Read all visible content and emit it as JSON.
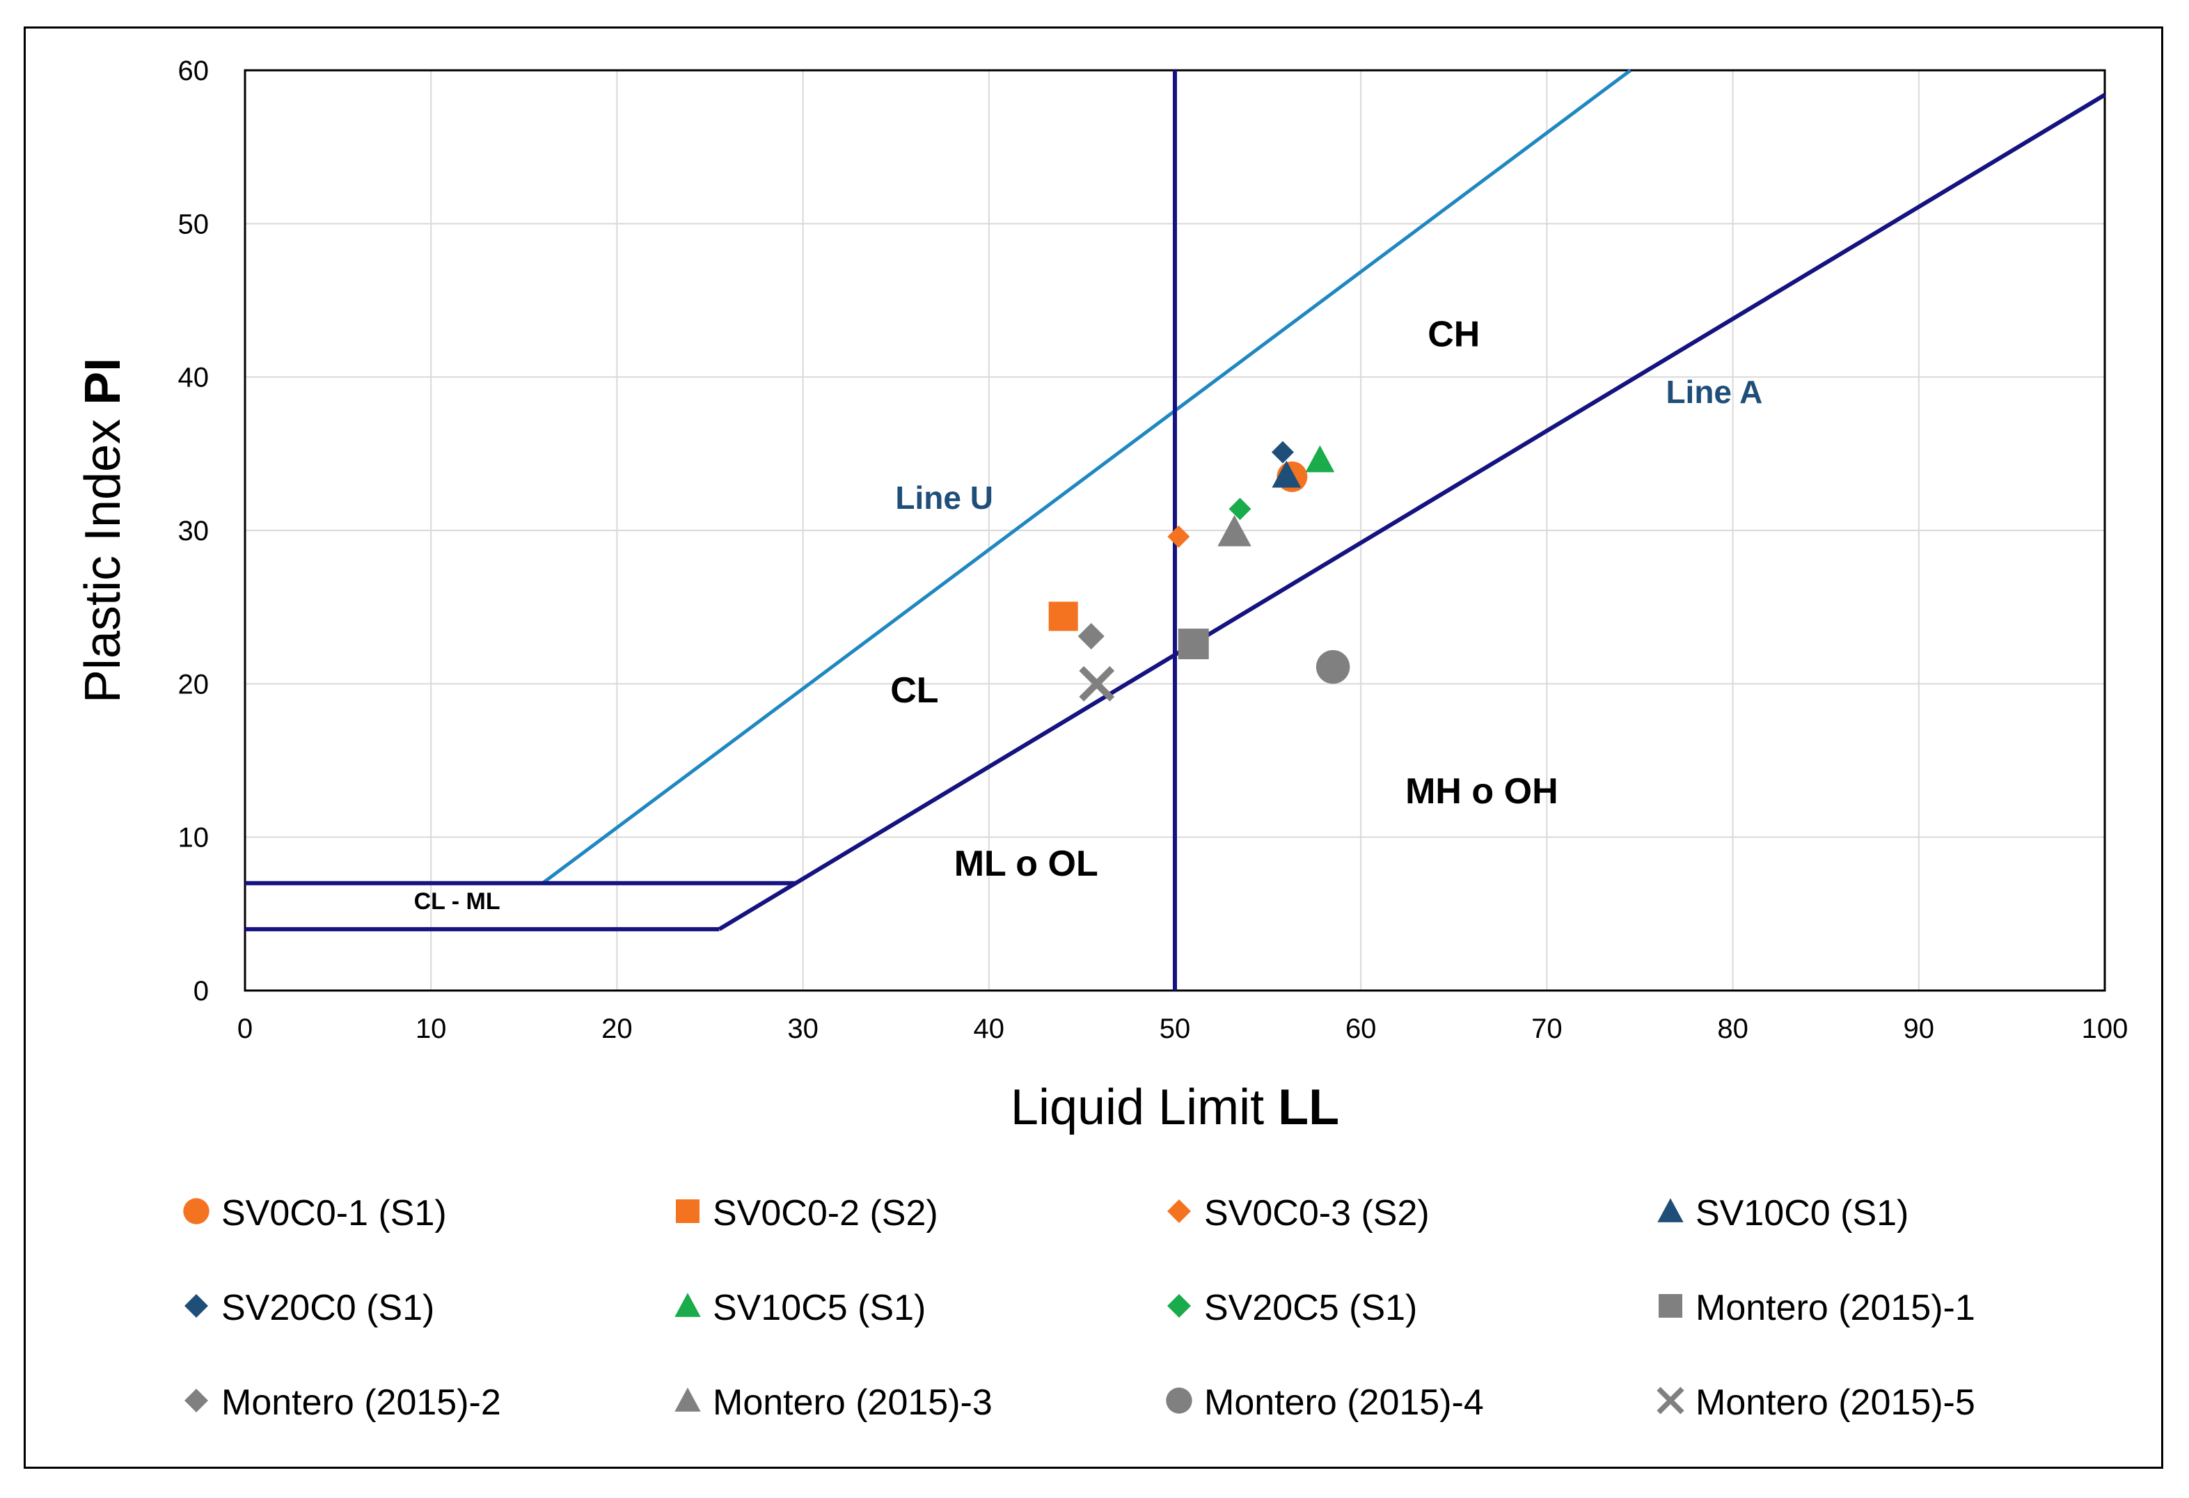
{
  "chart_data": {
    "type": "scatter",
    "xlabel": "Liquid Limit",
    "xlabel_bold": "LL",
    "ylabel": "Plastic Index",
    "ylabel_bold": "PI",
    "xlim": [
      0,
      100
    ],
    "ylim": [
      0,
      60
    ],
    "xticks": [
      "0",
      "10",
      "20",
      "30",
      "40",
      "50",
      "60",
      "70",
      "80",
      "90",
      "100"
    ],
    "yticks": [
      "0",
      "10",
      "20",
      "30",
      "40",
      "50",
      "60"
    ],
    "grid": true,
    "legend": "bottom",
    "regions": [
      {
        "text": "CH",
        "x": 65,
        "y": 42
      },
      {
        "text": "CL",
        "x": 36,
        "y": 18.8
      },
      {
        "text": "MH o OH",
        "x": 66.5,
        "y": 12.2
      },
      {
        "text": "ML o OL",
        "x": 42,
        "y": 7.5
      },
      {
        "text": "CL - ML",
        "x": 11.4,
        "y": 5.3
      }
    ],
    "line_labels": [
      {
        "text": "Line U",
        "x": 37.6,
        "y": 31.4
      },
      {
        "text": "Line A",
        "x": 79,
        "y": 38.3
      }
    ],
    "lines": [
      {
        "name": "Line U",
        "color": "#1F87C1",
        "points": [
          [
            16,
            7
          ],
          [
            74.5,
            60
          ]
        ]
      },
      {
        "name": "Line A",
        "color": "#14137F",
        "points": [
          [
            25.5,
            4
          ],
          [
            100,
            58.4
          ]
        ]
      },
      {
        "name": "LL = 50",
        "color": "#14137F",
        "points": [
          [
            50,
            0
          ],
          [
            50,
            60
          ]
        ]
      },
      {
        "name": "PI = 7",
        "color": "#14137F",
        "points": [
          [
            0,
            7
          ],
          [
            29.6,
            7
          ]
        ]
      },
      {
        "name": "PI = 4",
        "color": "#14137F",
        "points": [
          [
            0,
            4
          ],
          [
            25.5,
            4
          ]
        ]
      }
    ],
    "series": [
      {
        "name": "SV0C0-1 (S1)",
        "marker": "circle",
        "color": "#F47321",
        "x": 56.3,
        "y": 33.5
      },
      {
        "name": "SV0C0-2 (S2)",
        "marker": "square",
        "color": "#F47321",
        "x": 44.0,
        "y": 24.4
      },
      {
        "name": "SV0C0-3 (S2)",
        "marker": "diamond",
        "color": "#F47321",
        "x": 50.2,
        "y": 29.6
      },
      {
        "name": "SV10C0 (S1)",
        "marker": "triangle",
        "color": "#1F4E79",
        "x": 56.0,
        "y": 33.6
      },
      {
        "name": "SV20C0 (S1)",
        "marker": "diamond",
        "color": "#1F4E79",
        "x": 55.8,
        "y": 35.1
      },
      {
        "name": "SV10C5 (S1)",
        "marker": "triangle",
        "color": "#1AAB4B",
        "x": 57.8,
        "y": 34.6
      },
      {
        "name": "SV20C5 (S1)",
        "marker": "diamond",
        "color": "#1AAB4B",
        "x": 53.5,
        "y": 31.4
      },
      {
        "name": "Montero (2015)-1",
        "marker": "square",
        "color": "#808080",
        "x": 51.0,
        "y": 22.6
      },
      {
        "name": "Montero (2015)-2",
        "marker": "diamond",
        "color": "#808080",
        "x": 45.5,
        "y": 23.1
      },
      {
        "name": "Montero (2015)-3",
        "marker": "triangle",
        "color": "#808080",
        "x": 53.2,
        "y": 29.9
      },
      {
        "name": "Montero (2015)-4",
        "marker": "circle",
        "color": "#808080",
        "x": 58.5,
        "y": 21.1
      },
      {
        "name": "Montero (2015)-5",
        "marker": "x",
        "color": "#808080",
        "x": 45.8,
        "y": 20.0
      }
    ]
  }
}
